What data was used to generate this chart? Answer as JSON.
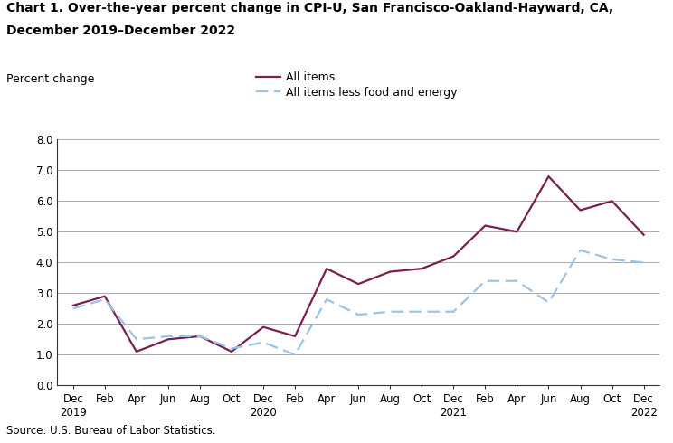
{
  "title_line1": "Chart 1. Over-the-year percent change in CPI-U, San Francisco-Oakland-Hayward, CA,",
  "title_line2": "December 2019–December 2022",
  "ylabel": "Percent change",
  "source": "Source: U.S. Bureau of Labor Statistics.",
  "ylim": [
    0.0,
    8.0
  ],
  "yticks": [
    0.0,
    1.0,
    2.0,
    3.0,
    4.0,
    5.0,
    6.0,
    7.0,
    8.0
  ],
  "x_labels": [
    "Dec\n2019",
    "Feb",
    "Apr",
    "Jun",
    "Aug",
    "Oct",
    "Dec\n2020",
    "Feb",
    "Apr",
    "Jun",
    "Aug",
    "Oct",
    "Dec\n2021",
    "Feb",
    "Apr",
    "Jun",
    "Aug",
    "Oct",
    "Dec\n2022"
  ],
  "all_items": [
    2.6,
    2.9,
    1.1,
    1.5,
    1.6,
    1.1,
    1.9,
    1.6,
    3.8,
    3.3,
    3.7,
    3.8,
    4.2,
    5.2,
    5.0,
    6.8,
    5.7,
    6.0,
    4.9
  ],
  "all_items_less": [
    2.5,
    2.8,
    1.5,
    1.6,
    1.6,
    1.2,
    1.4,
    1.0,
    2.8,
    2.3,
    2.4,
    2.4,
    2.4,
    3.4,
    3.4,
    2.7,
    4.4,
    4.1,
    4.0
  ],
  "line1_color": "#7b1f4e",
  "line2_color": "#99c4e8",
  "line1_label": "All items",
  "line2_label": "All items less food and energy",
  "bg_color": "#ffffff",
  "grid_color": "#aaaaaa",
  "title_fontsize": 10.0,
  "label_fontsize": 9.0,
  "tick_fontsize": 8.5,
  "source_fontsize": 8.5
}
